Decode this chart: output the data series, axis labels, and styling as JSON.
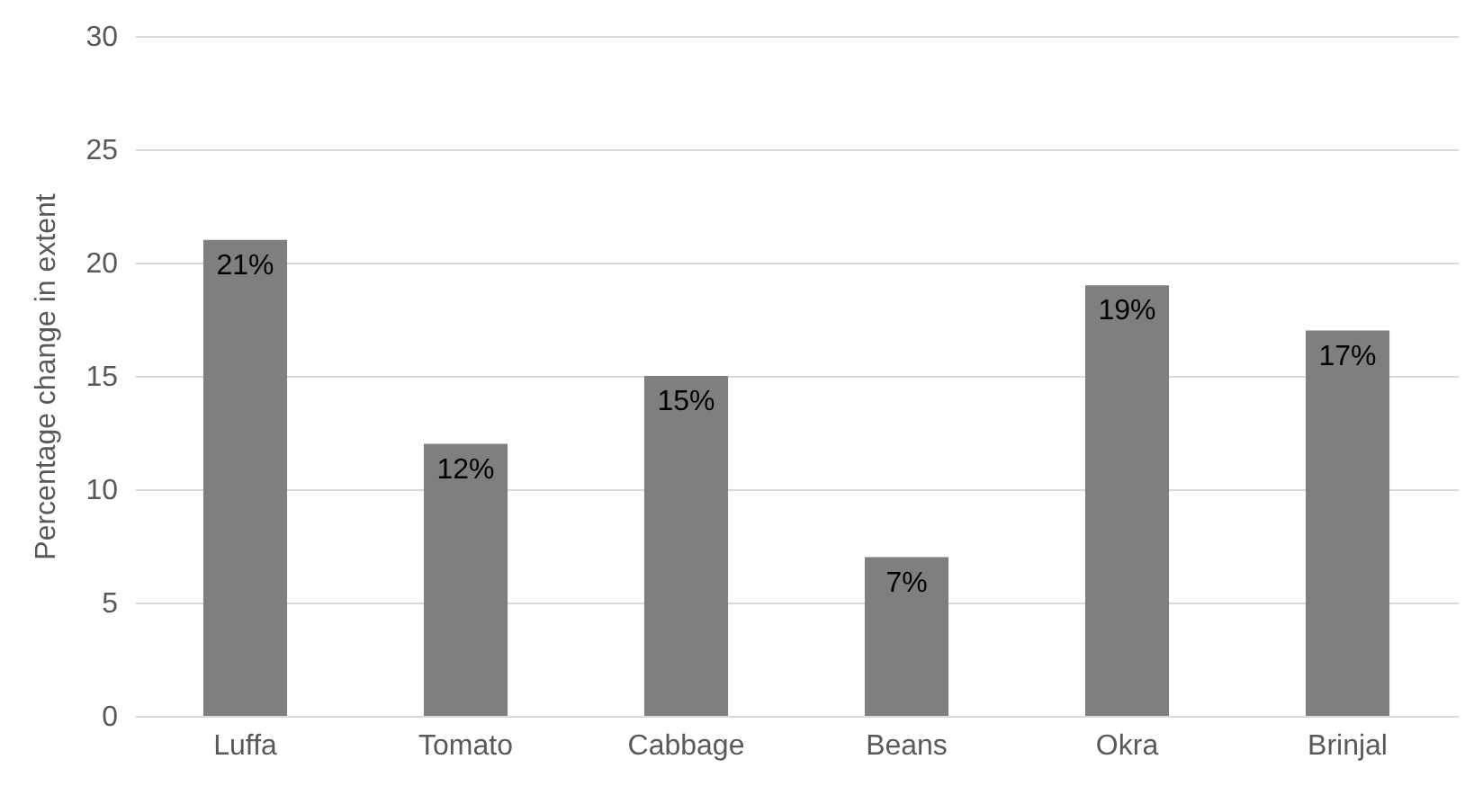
{
  "chart_data": {
    "type": "bar",
    "ylabel": "Percentage change in extent",
    "categories": [
      "Luffa",
      "Tomato",
      "Cabbage",
      "Beans",
      "Okra",
      "Brinjal"
    ],
    "values": [
      21,
      12,
      15,
      7,
      19,
      17
    ],
    "value_labels": [
      "21%",
      "12%",
      "15%",
      "7%",
      "19%",
      "17%"
    ],
    "color": "#7f7f7f",
    "ylim": [
      0,
      30
    ],
    "yticks": [
      0,
      5,
      10,
      15,
      20,
      25,
      30
    ],
    "grid": "y"
  }
}
